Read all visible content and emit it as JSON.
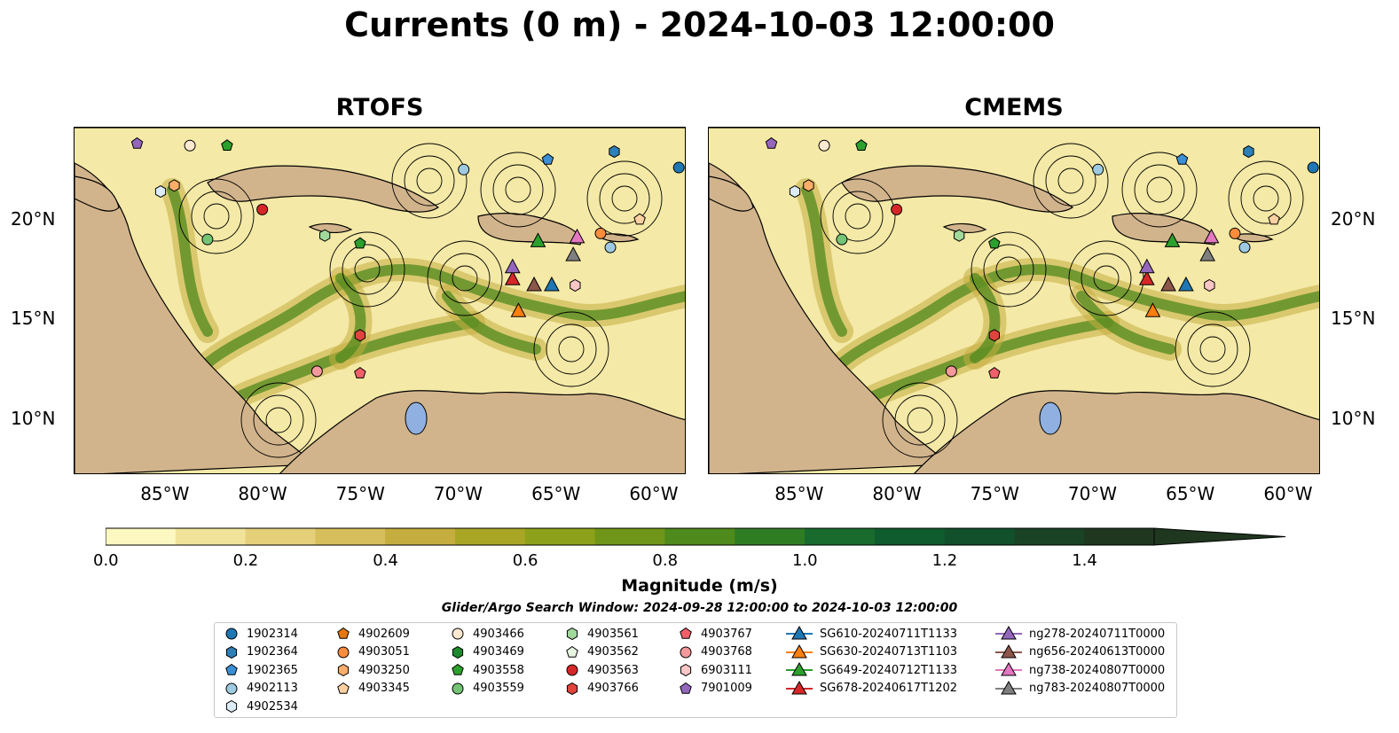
{
  "title": "Currents (0 m) - 2024-10-03 12:00:00",
  "panels": [
    {
      "title": "RTOFS"
    },
    {
      "title": "CMEMS"
    }
  ],
  "axes": {
    "x_ticks": [
      "85°W",
      "80°W",
      "75°W",
      "70°W",
      "65°W",
      "60°W"
    ],
    "y_ticks": [
      "20°N",
      "15°N",
      "10°N"
    ],
    "lon_range": [
      -89.5,
      -58.2
    ],
    "lat_range": [
      7.2,
      24.6
    ]
  },
  "colorbar": {
    "label": "Magnitude (m/s)",
    "ticks": [
      "0.0",
      "0.2",
      "0.4",
      "0.6",
      "0.8",
      "1.0",
      "1.2",
      "1.4"
    ],
    "range": [
      0,
      1.5
    ],
    "extend": "max",
    "colors": [
      "#fdf7c1",
      "#f1e39a",
      "#e5d07a",
      "#d7be5c",
      "#c5ad3f",
      "#a9a626",
      "#8ea11a",
      "#6f9618",
      "#4f8a1d",
      "#2f7d23",
      "#186b2c",
      "#0f5c2e",
      "#11502b",
      "#1a4325",
      "#1f361f"
    ]
  },
  "search_window": "Glider/Argo Search Window: 2024-09-28 12:00:00 to 2024-10-03 12:00:00",
  "legend": {
    "columns": [
      [
        {
          "label": "1902314",
          "shape": "circle",
          "color": "#1f77b4"
        },
        {
          "label": "1902364",
          "shape": "hexagon",
          "color": "#2c7fb8"
        },
        {
          "label": "1902365",
          "shape": "pentagon",
          "color": "#3b8fd4"
        },
        {
          "label": "4902113",
          "shape": "circle",
          "color": "#9ecae1"
        },
        {
          "label": "4902534",
          "shape": "hexagon",
          "color": "#dcecf7"
        }
      ],
      [
        {
          "label": "4902609",
          "shape": "pentagon",
          "color": "#e6760e"
        },
        {
          "label": "4903051",
          "shape": "circle",
          "color": "#fd8d3c"
        },
        {
          "label": "4903250",
          "shape": "hexagon",
          "color": "#fdae6b"
        },
        {
          "label": "4903345",
          "shape": "pentagon",
          "color": "#fdd0a2"
        }
      ],
      [
        {
          "label": "4903466",
          "shape": "circle",
          "color": "#fde8d0"
        },
        {
          "label": "4903469",
          "shape": "hexagon",
          "color": "#1e8a2e"
        },
        {
          "label": "4903558",
          "shape": "pentagon",
          "color": "#2ca02c"
        },
        {
          "label": "4903559",
          "shape": "circle",
          "color": "#74c476"
        }
      ],
      [
        {
          "label": "4903561",
          "shape": "hexagon",
          "color": "#a1d99b"
        },
        {
          "label": "4903562",
          "shape": "pentagon",
          "color": "#e5f5e0"
        },
        {
          "label": "4903563",
          "shape": "circle",
          "color": "#d62728"
        },
        {
          "label": "4903766",
          "shape": "hexagon",
          "color": "#e0443c"
        }
      ],
      [
        {
          "label": "4903767",
          "shape": "pentagon",
          "color": "#f0606a"
        },
        {
          "label": "4903768",
          "shape": "circle",
          "color": "#f4999b"
        },
        {
          "label": "6903111",
          "shape": "hexagon",
          "color": "#fbc6c6"
        },
        {
          "label": "7901009",
          "shape": "pentagon",
          "color": "#9467bd"
        }
      ],
      [
        {
          "label": "SG610-20240711T1133",
          "shape": "triangle-line",
          "color": "#1f77b4"
        },
        {
          "label": "SG630-20240713T1103",
          "shape": "triangle-line",
          "color": "#ff7f0e"
        },
        {
          "label": "SG649-20240712T1133",
          "shape": "triangle-line",
          "color": "#2ca02c"
        },
        {
          "label": "SG678-20240617T1202",
          "shape": "triangle-line",
          "color": "#d62728"
        }
      ],
      [
        {
          "label": "ng278-20240711T0000",
          "shape": "triangle-line",
          "color": "#9467bd"
        },
        {
          "label": "ng656-20240613T0000",
          "shape": "triangle-line",
          "color": "#8c564b"
        },
        {
          "label": "ng738-20240807T0000",
          "shape": "triangle-line",
          "color": "#e377c2"
        },
        {
          "label": "ng783-20240807T0000",
          "shape": "triangle-line",
          "color": "#7f7f7f"
        }
      ]
    ]
  },
  "markers": [
    {
      "id": "1902314",
      "lon": -58.6,
      "lat": 22.6
    },
    {
      "id": "1902364",
      "lon": -61.9,
      "lat": 23.4
    },
    {
      "id": "1902365",
      "lon": -65.3,
      "lat": 23.0
    },
    {
      "id": "4902113",
      "lon": -69.6,
      "lat": 22.5
    },
    {
      "id": "4902534",
      "lon": -85.1,
      "lat": 21.4
    },
    {
      "id": "4903051",
      "lon": -62.6,
      "lat": 19.3
    },
    {
      "id": "4902113",
      "lon": -62.1,
      "lat": 18.6
    },
    {
      "id": "4903250",
      "lon": -84.4,
      "lat": 21.7
    },
    {
      "id": "4903345",
      "lon": -60.6,
      "lat": 20.0
    },
    {
      "id": "4903466",
      "lon": -83.6,
      "lat": 23.7
    },
    {
      "id": "4903558",
      "lon": -81.7,
      "lat": 23.7
    },
    {
      "id": "4903559",
      "lon": -82.7,
      "lat": 19.0
    },
    {
      "id": "4903561",
      "lon": -76.7,
      "lat": 19.2
    },
    {
      "id": "4903558",
      "lon": -74.9,
      "lat": 18.8
    },
    {
      "id": "4903563",
      "lon": -79.9,
      "lat": 20.5
    },
    {
      "id": "4903766",
      "lon": -74.9,
      "lat": 14.2
    },
    {
      "id": "4903767",
      "lon": -74.9,
      "lat": 12.3
    },
    {
      "id": "4903768",
      "lon": -77.1,
      "lat": 12.4
    },
    {
      "id": "6903111",
      "lon": -63.9,
      "lat": 16.7
    },
    {
      "id": "7901009",
      "lon": -86.3,
      "lat": 23.8
    },
    {
      "id": "SG610-20240711T1133",
      "lon": -65.1,
      "lat": 16.7
    },
    {
      "id": "SG630-20240713T1103",
      "lon": -66.8,
      "lat": 15.4
    },
    {
      "id": "SG649-20240712T1133",
      "lon": -65.8,
      "lat": 18.9
    },
    {
      "id": "SG678-20240617T1202",
      "lon": -67.1,
      "lat": 17.0
    },
    {
      "id": "ng278-20240711T0000",
      "lon": -67.1,
      "lat": 17.6
    },
    {
      "id": "ng656-20240613T0000",
      "lon": -66.0,
      "lat": 16.7
    },
    {
      "id": "ng738-20240807T0000",
      "lon": -63.8,
      "lat": 19.1
    },
    {
      "id": "ng783-20240807T0000",
      "lon": -64.0,
      "lat": 18.2
    }
  ]
}
